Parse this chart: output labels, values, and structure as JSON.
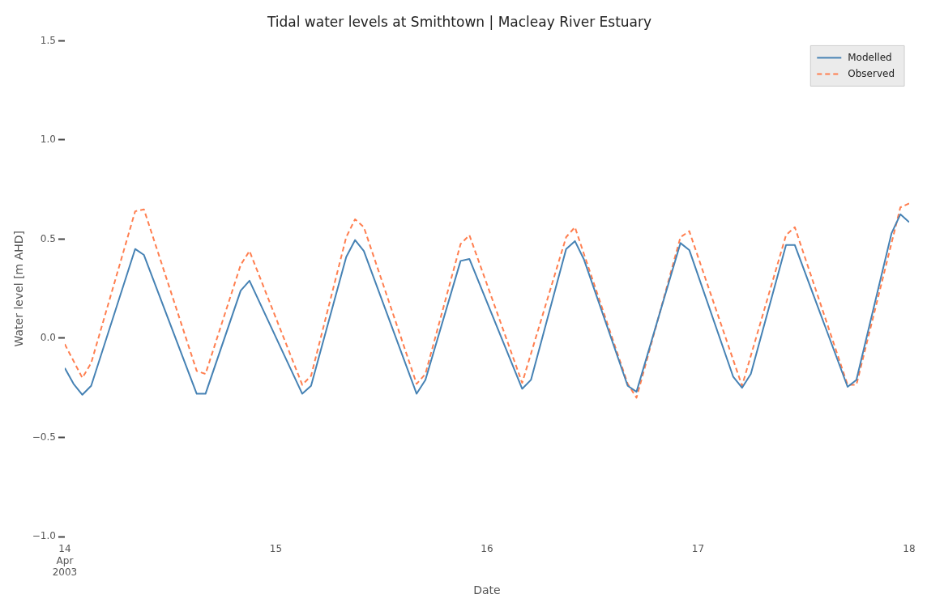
{
  "chart_data": {
    "type": "line",
    "title": "Tidal water levels at Smithtown | Macleay River Estuary",
    "xlabel": "Date",
    "ylabel": "Water level [m AHD]",
    "series": [
      {
        "name": "Modelled",
        "color": "#4682b4",
        "line_style": "solid",
        "x": [
          "2003-04-14T00:00",
          "2003-04-14T01:00",
          "2003-04-14T02:00",
          "2003-04-14T03:00",
          "2003-04-14T08:00",
          "2003-04-14T09:00",
          "2003-04-14T15:00",
          "2003-04-14T16:00",
          "2003-04-14T20:00",
          "2003-04-14T21:00",
          "2003-04-15T03:00",
          "2003-04-15T04:00",
          "2003-04-15T08:00",
          "2003-04-15T09:00",
          "2003-04-15T10:00",
          "2003-04-15T16:00",
          "2003-04-15T17:00",
          "2003-04-15T21:00",
          "2003-04-15T22:00",
          "2003-04-16T04:00",
          "2003-04-16T05:00",
          "2003-04-16T09:00",
          "2003-04-16T10:00",
          "2003-04-16T11:00",
          "2003-04-16T16:00",
          "2003-04-16T17:00",
          "2003-04-16T22:00",
          "2003-04-16T23:00",
          "2003-04-17T04:00",
          "2003-04-17T05:00",
          "2003-04-17T06:00",
          "2003-04-17T10:00",
          "2003-04-17T11:00",
          "2003-04-17T17:00",
          "2003-04-17T18:00",
          "2003-04-17T22:00",
          "2003-04-17T23:00",
          "2003-04-18T00:00"
        ],
        "values": [
          -0.15,
          -0.23,
          -0.285,
          -0.24,
          0.45,
          0.42,
          -0.28,
          -0.28,
          0.24,
          0.29,
          -0.28,
          -0.24,
          0.41,
          0.495,
          0.44,
          -0.28,
          -0.21,
          0.39,
          0.4,
          -0.255,
          -0.21,
          0.45,
          0.49,
          0.4,
          -0.24,
          -0.27,
          0.48,
          0.445,
          -0.195,
          -0.25,
          -0.18,
          0.47,
          0.47,
          -0.245,
          -0.21,
          0.53,
          0.625,
          0.585
        ]
      },
      {
        "name": "Observed",
        "color": "#ff7f50",
        "line_style": "dashed",
        "x": [
          "2003-04-14T00:00",
          "2003-04-14T02:00",
          "2003-04-14T03:00",
          "2003-04-14T08:00",
          "2003-04-14T09:00",
          "2003-04-14T15:00",
          "2003-04-14T16:00",
          "2003-04-14T20:00",
          "2003-04-14T21:00",
          "2003-04-15T03:00",
          "2003-04-15T04:00",
          "2003-04-15T08:00",
          "2003-04-15T09:00",
          "2003-04-15T10:00",
          "2003-04-15T16:00",
          "2003-04-15T17:00",
          "2003-04-15T21:00",
          "2003-04-15T22:00",
          "2003-04-16T04:00",
          "2003-04-16T09:00",
          "2003-04-16T10:00",
          "2003-04-16T16:00",
          "2003-04-16T17:00",
          "2003-04-16T22:00",
          "2003-04-16T23:00",
          "2003-04-17T05:00",
          "2003-04-17T10:00",
          "2003-04-17T11:00",
          "2003-04-17T17:00",
          "2003-04-17T18:00",
          "2003-04-17T23:00",
          "2003-04-18T00:00"
        ],
        "values": [
          -0.03,
          -0.2,
          -0.125,
          0.64,
          0.65,
          -0.165,
          -0.18,
          0.37,
          0.44,
          -0.235,
          -0.19,
          0.51,
          0.6,
          0.56,
          -0.23,
          -0.18,
          0.475,
          0.52,
          -0.225,
          0.51,
          0.56,
          -0.23,
          -0.3,
          0.51,
          0.54,
          -0.24,
          0.52,
          0.56,
          -0.235,
          -0.235,
          0.66,
          0.68
        ]
      }
    ],
    "xlim": [
      "2003-04-14T00:00",
      "2003-04-18T00:00"
    ],
    "xticks": [
      {
        "value": "2003-04-14",
        "label": "14\nApr\n2003"
      },
      {
        "value": "2003-04-15",
        "label": "15"
      },
      {
        "value": "2003-04-16",
        "label": "16"
      },
      {
        "value": "2003-04-17",
        "label": "17"
      },
      {
        "value": "2003-04-18",
        "label": "18"
      }
    ],
    "ylim": [
      -1.0,
      1.5
    ],
    "yticks": [
      {
        "value": -1.0,
        "label": "−1.0"
      },
      {
        "value": -0.5,
        "label": "−0.5"
      },
      {
        "value": 0,
        "label": "0.0"
      },
      {
        "value": 0.5,
        "label": "0.5"
      },
      {
        "value": 1.0,
        "label": "1.0"
      },
      {
        "value": 1.5,
        "label": "1.5"
      }
    ],
    "grid": false,
    "legend": "top right"
  }
}
